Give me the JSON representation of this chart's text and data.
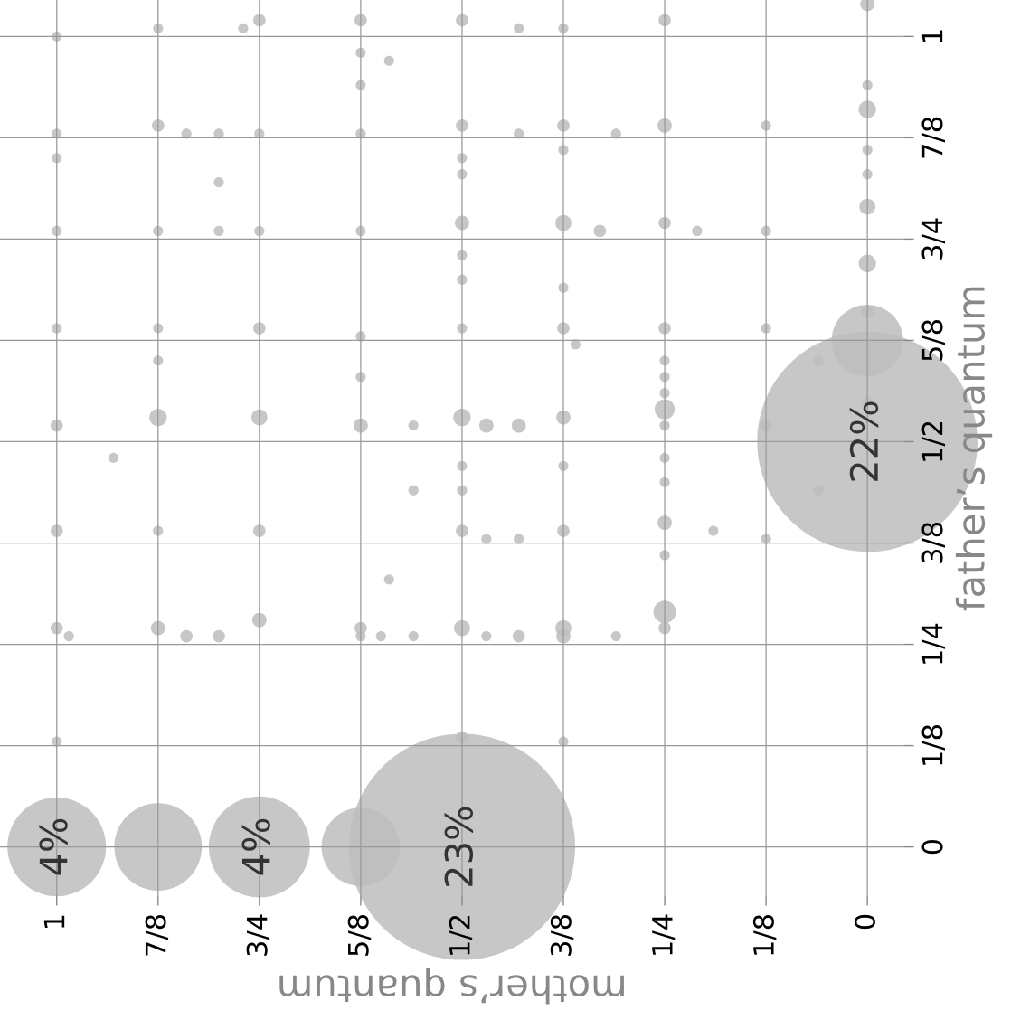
{
  "chart_data": {
    "type": "bubble",
    "xlabel": "mother’s quantum",
    "ylabel": "father’s quantum",
    "xlim": [
      1.07,
      -0.045
    ],
    "ylim": [
      -0.06,
      1.045
    ],
    "xticks": [
      1,
      {
        "value": 0.875,
        "label": "7/8"
      },
      {
        "value": 0.75,
        "label": "3/4"
      },
      {
        "value": 0.625,
        "label": "5/8"
      },
      {
        "value": 0.5,
        "label": "1/2"
      },
      {
        "value": 0.375,
        "label": "3/8"
      },
      {
        "value": 0.25,
        "label": "1/4"
      },
      {
        "value": 0.125,
        "label": "1/8"
      },
      0
    ],
    "yticks": [
      0,
      {
        "value": 0.125,
        "label": "1/8"
      },
      {
        "value": 0.25,
        "label": "1/4"
      },
      {
        "value": 0.375,
        "label": "3/8"
      },
      {
        "value": 0.5,
        "label": "1/2"
      },
      {
        "value": 0.625,
        "label": "5/8"
      },
      {
        "value": 0.75,
        "label": "3/4"
      },
      {
        "value": 0.875,
        "label": "7/8"
      },
      1
    ],
    "grid": true,
    "series": [
      {
        "color": "#bdbdbd",
        "x": [
          1,
          0.875,
          0.75,
          0.625,
          0.5,
          0,
          0,
          1,
          1,
          1,
          1,
          1,
          1,
          1,
          1,
          1,
          0.985,
          0.93,
          0.875,
          0.875,
          0.875,
          0.875,
          0.875,
          0.875,
          0.875,
          0.875,
          0.84,
          0.84,
          0.8,
          0.8,
          0.8,
          0.8,
          0.75,
          0.75,
          0.75,
          0.75,
          0.75,
          0.75,
          0.75,
          0.77,
          0.625,
          0.625,
          0.625,
          0.625,
          0.625,
          0.625,
          0.625,
          0.625,
          0.625,
          0.625,
          0.59,
          0.59,
          0.6,
          0.56,
          0.56,
          0.56,
          0.5,
          0.5,
          0.5,
          0.5,
          0.5,
          0.5,
          0.5,
          0.5,
          0.5,
          0.5,
          0.5,
          0.5,
          0.5,
          0.5,
          0.47,
          0.47,
          0.47,
          0.43,
          0.43,
          0.43,
          0.43,
          0.43,
          0.375,
          0.375,
          0.375,
          0.375,
          0.375,
          0.375,
          0.375,
          0.375,
          0.375,
          0.375,
          0.375,
          0.375,
          0.36,
          0.31,
          0.31,
          0.33,
          0.25,
          0.25,
          0.25,
          0.25,
          0.25,
          0.25,
          0.25,
          0.25,
          0.25,
          0.25,
          0.25,
          0.25,
          0.25,
          0.25,
          0.25,
          0.21,
          0.19,
          0.125,
          0.125,
          0.125,
          0.125,
          0.125,
          0.06,
          0.06,
          0,
          0,
          0,
          0,
          0,
          0,
          0,
          0,
          0
        ],
        "values": [
          0,
          0,
          0,
          0,
          0,
          0.5,
          0.625,
          1,
          0.88,
          0.85,
          0.76,
          0.64,
          0.52,
          0.39,
          0.27,
          0.13,
          0.26,
          0.48,
          1.01,
          0.89,
          0.76,
          0.64,
          0.6,
          0.53,
          0.39,
          0.27,
          0.88,
          0.26,
          0.88,
          0.82,
          0.76,
          0.26,
          1.02,
          0.88,
          0.76,
          0.64,
          0.53,
          0.39,
          0.28,
          1.01,
          1.02,
          0.98,
          0.94,
          0.88,
          0.76,
          0.63,
          0.58,
          0.52,
          0.27,
          0.26,
          0.97,
          0.33,
          0.26,
          0.52,
          0.44,
          0.26,
          1.02,
          0.89,
          0.85,
          0.83,
          0.77,
          0.73,
          0.7,
          0.64,
          0.53,
          0.47,
          0.44,
          0.39,
          0.27,
          0.135,
          0.52,
          0.38,
          0.26,
          1.01,
          0.88,
          0.52,
          0.38,
          0.26,
          1.01,
          0.89,
          0.86,
          0.77,
          0.69,
          0.64,
          0.53,
          0.47,
          0.39,
          0.27,
          0.26,
          0.13,
          0.62,
          0.88,
          0.26,
          0.76,
          1.02,
          0.89,
          0.77,
          0.64,
          0.6,
          0.58,
          0.56,
          0.54,
          0.52,
          0.48,
          0.45,
          0.4,
          0.36,
          0.29,
          0.27,
          0.76,
          0.39,
          0.89,
          0.76,
          0.64,
          0.52,
          0.38,
          0.6,
          0.44,
          1.04,
          0.94,
          0.91,
          0.86,
          0.83,
          0.79,
          0.72,
          0.66,
          0.55
        ],
        "sizes": [
          0.19,
          0.15,
          0.2,
          0.12,
          1,
          0.95,
          0.1,
          0.002,
          0.002,
          0.002,
          0.002,
          0.002,
          0.003,
          0.003,
          0.003,
          0.002,
          0.002,
          0.002,
          0.002,
          0.003,
          0.002,
          0.002,
          0.002,
          0.006,
          0.002,
          0.004,
          0.002,
          0.003,
          0.002,
          0.002,
          0.002,
          0.003,
          0.003,
          0.002,
          0.002,
          0.003,
          0.005,
          0.003,
          0.004,
          0.002,
          0.003,
          0.002,
          0.002,
          0.002,
          0.002,
          0.002,
          0.002,
          0.004,
          0.003,
          0.002,
          0.002,
          0.002,
          0.002,
          0.002,
          0.002,
          0.002,
          0.003,
          0.003,
          0.002,
          0.002,
          0.004,
          0.002,
          0.002,
          0.002,
          0.006,
          0.002,
          0.002,
          0.003,
          0.005,
          0.003,
          0.004,
          0.002,
          0.002,
          0.002,
          0.002,
          0.004,
          0.002,
          0.003,
          0.002,
          0.003,
          0.002,
          0.005,
          0.002,
          0.003,
          0.004,
          0.002,
          0.003,
          0.005,
          0.004,
          0.002,
          0.002,
          0.002,
          0.002,
          0.003,
          0.003,
          0.004,
          0.003,
          0.003,
          0.002,
          0.002,
          0.002,
          0.008,
          0.002,
          0.002,
          0.002,
          0.004,
          0.002,
          0.01,
          0.003,
          0.002,
          0.002,
          0.002,
          0.002,
          0.002,
          0.003,
          0.002,
          0.002,
          0.002,
          0.004,
          0.002,
          0.006,
          0.002,
          0.002,
          0.005,
          0.006,
          0.003,
          0.002
        ]
      }
    ],
    "annotations": [
      {
        "text": "4%",
        "x": 1,
        "y": 0
      },
      {
        "text": "4%",
        "x": 0.75,
        "y": 0
      },
      {
        "text": "23%",
        "x": 0.5,
        "y": 0
      },
      {
        "text": "22%",
        "x": 0,
        "y": 0.5
      }
    ]
  }
}
